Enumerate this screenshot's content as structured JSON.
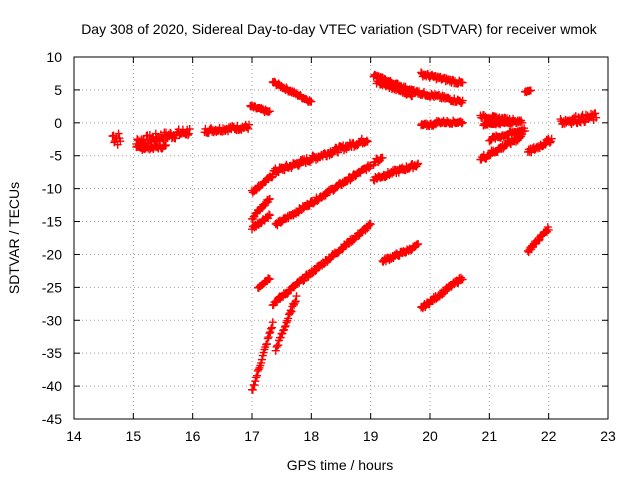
{
  "chart_data": {
    "type": "scatter",
    "title": "Day 308 of 2020, Sidereal Day-to-day VTEC variation (SDTVAR) for receiver wmok",
    "xlabel": "GPS time / hours",
    "ylabel": "SDTVAR / TECUs",
    "xlim": [
      14,
      23
    ],
    "ylim": [
      -45,
      10
    ],
    "xticks": [
      14,
      15,
      16,
      17,
      18,
      19,
      20,
      21,
      22,
      23
    ],
    "yticks": [
      -45,
      -40,
      -35,
      -30,
      -25,
      -20,
      -15,
      -10,
      -5,
      0,
      5,
      10
    ],
    "grid": true,
    "marker": "+",
    "marker_color": "#ff0000",
    "segments": [
      {
        "x0": 14.65,
        "x1": 14.78,
        "y0": -2.0,
        "y1": -2.6,
        "spread": 2.2
      },
      {
        "x0": 15.05,
        "x1": 15.95,
        "y0": -2.9,
        "y1": -1.3,
        "spread": 1.4
      },
      {
        "x0": 15.05,
        "x1": 15.55,
        "y0": -3.9,
        "y1": -3.6,
        "spread": 0.6
      },
      {
        "x0": 16.2,
        "x1": 16.95,
        "y0": -1.2,
        "y1": -0.6,
        "spread": 0.8
      },
      {
        "x0": 16.97,
        "x1": 17.3,
        "y0": 2.5,
        "y1": 1.6,
        "spread": 0.5
      },
      {
        "x0": 17.35,
        "x1": 18.0,
        "y0": 6.2,
        "y1": 3.2,
        "spread": 0.5
      },
      {
        "x0": 17.0,
        "x1": 17.35,
        "y0": -10.5,
        "y1": -8.0,
        "spread": 0.5
      },
      {
        "x0": 17.35,
        "x1": 18.95,
        "y0": -7.5,
        "y1": -2.5,
        "spread": 0.9
      },
      {
        "x0": 17.0,
        "x1": 17.3,
        "y0": -14.5,
        "y1": -11.5,
        "spread": 0.6
      },
      {
        "x0": 17.0,
        "x1": 17.3,
        "y0": -16.0,
        "y1": -14.0,
        "spread": 0.6
      },
      {
        "x0": 17.4,
        "x1": 19.0,
        "y0": -15.5,
        "y1": -6.5,
        "spread": 0.6
      },
      {
        "x0": 17.1,
        "x1": 17.3,
        "y0": -25.0,
        "y1": -23.5,
        "spread": 0.5
      },
      {
        "x0": 17.35,
        "x1": 19.0,
        "y0": -27.5,
        "y1": -15.5,
        "spread": 0.6
      },
      {
        "x0": 17.0,
        "x1": 17.35,
        "y0": -40.8,
        "y1": -30.5,
        "spread": 0.6
      },
      {
        "x0": 17.4,
        "x1": 17.75,
        "y0": -34.5,
        "y1": -26.5,
        "spread": 0.6
      },
      {
        "x0": 19.05,
        "x1": 19.2,
        "y0": -6.0,
        "y1": -5.3,
        "spread": 0.8
      },
      {
        "x0": 19.05,
        "x1": 19.8,
        "y0": -8.5,
        "y1": -6.3,
        "spread": 0.7
      },
      {
        "x0": 19.2,
        "x1": 19.6,
        "y0": -21.0,
        "y1": -19.5,
        "spread": 0.6
      },
      {
        "x0": 19.6,
        "x1": 19.8,
        "y0": -19.5,
        "y1": -18.6,
        "spread": 0.5
      },
      {
        "x0": 19.85,
        "x1": 20.55,
        "y0": -28.2,
        "y1": -23.5,
        "spread": 0.6
      },
      {
        "x0": 19.05,
        "x1": 19.8,
        "y0": 7.2,
        "y1": 4.5,
        "spread": 0.5
      },
      {
        "x0": 19.1,
        "x1": 19.7,
        "y0": 6.2,
        "y1": 4.2,
        "spread": 0.5
      },
      {
        "x0": 19.8,
        "x1": 20.55,
        "y0": 4.6,
        "y1": 3.2,
        "spread": 0.6
      },
      {
        "x0": 19.85,
        "x1": 20.55,
        "y0": 7.4,
        "y1": 6.0,
        "spread": 0.6
      },
      {
        "x0": 19.85,
        "x1": 20.1,
        "y0": -0.4,
        "y1": -0.2,
        "spread": 0.5
      },
      {
        "x0": 20.1,
        "x1": 20.55,
        "y0": 0.1,
        "y1": 0.1,
        "spread": 0.5
      },
      {
        "x0": 20.85,
        "x1": 21.4,
        "y0": 1.0,
        "y1": 0.4,
        "spread": 0.5
      },
      {
        "x0": 20.9,
        "x1": 21.55,
        "y0": -0.2,
        "y1": 0.2,
        "spread": 0.4
      },
      {
        "x0": 20.85,
        "x1": 21.55,
        "y0": -5.5,
        "y1": -2.0,
        "spread": 0.9
      },
      {
        "x0": 21.0,
        "x1": 21.6,
        "y0": -2.5,
        "y1": -1.0,
        "spread": 0.6
      },
      {
        "x0": 21.65,
        "x1": 22.05,
        "y0": -4.5,
        "y1": -2.5,
        "spread": 0.8
      },
      {
        "x0": 21.65,
        "x1": 22.0,
        "y0": -19.5,
        "y1": -16.0,
        "spread": 0.6
      },
      {
        "x0": 22.2,
        "x1": 22.8,
        "y0": 0.2,
        "y1": 0.9,
        "spread": 1.2
      },
      {
        "x0": 21.6,
        "x1": 21.7,
        "y0": 4.8,
        "y1": 4.8,
        "spread": 0.3
      }
    ]
  }
}
